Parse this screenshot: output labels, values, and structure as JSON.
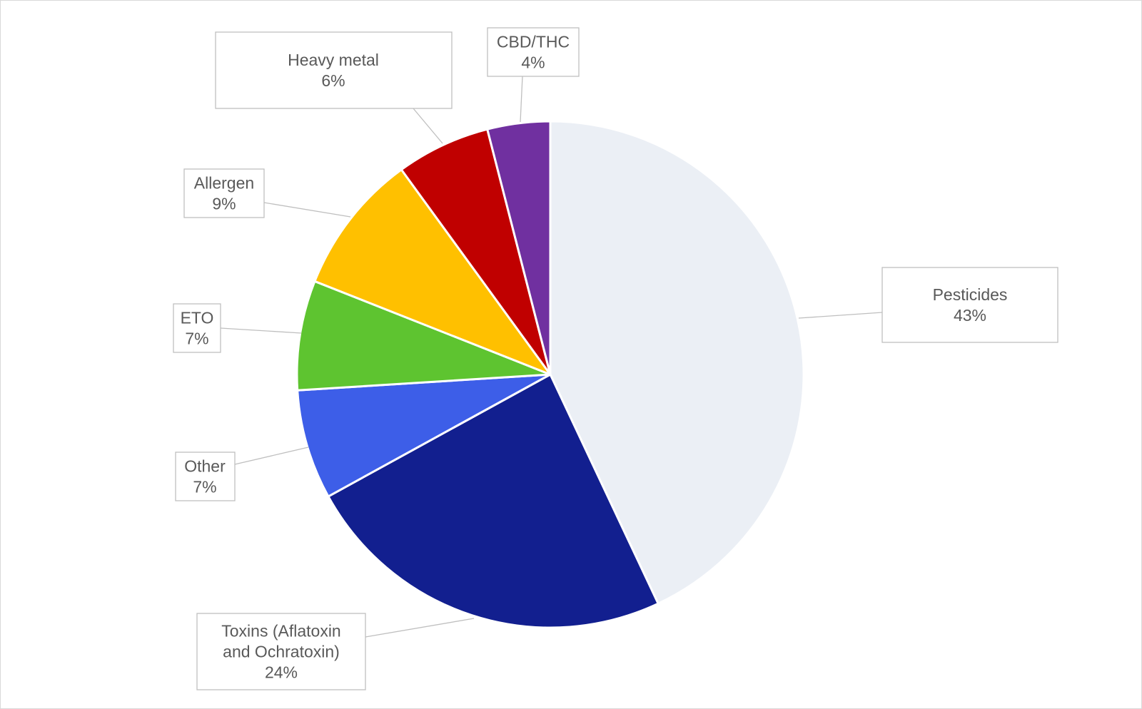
{
  "chart_data": {
    "type": "pie",
    "title": "",
    "start_angle_deg": 0,
    "direction": "clockwise",
    "slices": [
      {
        "label": "Pesticides",
        "value": 43,
        "value_label": "43%",
        "color": "#EBEFF5"
      },
      {
        "label": "Toxins (Aflatoxin and Ochratoxin)",
        "label_lines": [
          "Toxins (Aflatoxin",
          "and Ochratoxin)"
        ],
        "value": 24,
        "value_label": "24%",
        "color": "#121F8F"
      },
      {
        "label": "Other",
        "value": 7,
        "value_label": "7%",
        "color": "#3D5EE8"
      },
      {
        "label": "ETO",
        "value": 7,
        "value_label": "7%",
        "color": "#5EC430"
      },
      {
        "label": "Allergen",
        "value": 9,
        "value_label": "9%",
        "color": "#FFC000"
      },
      {
        "label": "Heavy metal",
        "value": 6,
        "value_label": "6%",
        "color": "#C00000"
      },
      {
        "label": "CBD/THC",
        "value": 4,
        "value_label": "4%",
        "color": "#7030A0"
      }
    ],
    "legend": "none",
    "data_labels": "callouts"
  }
}
